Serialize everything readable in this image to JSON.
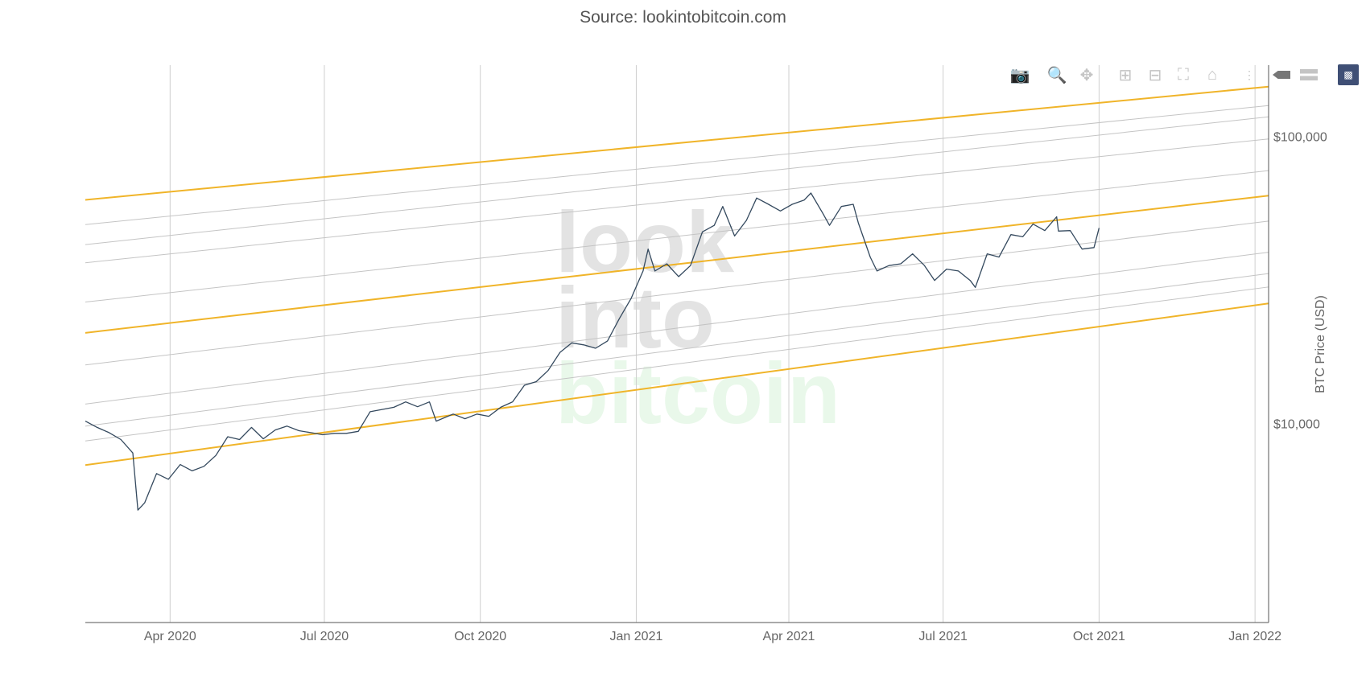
{
  "header": {
    "source": "Source: lookintobitcoin.com"
  },
  "watermark": {
    "line1": "look",
    "line2": "into",
    "line3": "bitcoin"
  },
  "toolbar": {
    "icons": [
      "camera-icon",
      "zoom-icon",
      "pan-icon",
      "zoom-in-icon",
      "zoom-out-icon",
      "autoscale-icon",
      "reset-axes-icon",
      "spike-lines-icon",
      "hover-closest-icon",
      "hover-compare-icon",
      "plotly-logo-icon"
    ]
  },
  "colors": {
    "price": "#34495e",
    "band_orange": "#f0b429",
    "band_gray": "#c4c4c4",
    "grid": "#cfcfcf",
    "logo": "#3f4f75"
  },
  "chart_data": {
    "type": "line",
    "title": "Source: lookintobitcoin.com",
    "xlabel": "",
    "ylabel": "BTC Price (USD)",
    "yscale": "log",
    "xlim": [
      "2020-02-11",
      "2022-01-09"
    ],
    "ylim": [
      2030,
      177000
    ],
    "x_ticks": [
      {
        "date": "2020-04-01",
        "label": "Apr 2020"
      },
      {
        "date": "2020-07-01",
        "label": "Jul 2020"
      },
      {
        "date": "2020-10-01",
        "label": "Oct 2020"
      },
      {
        "date": "2021-01-01",
        "label": "Jan 2021"
      },
      {
        "date": "2021-04-01",
        "label": "Apr 2021"
      },
      {
        "date": "2021-07-01",
        "label": "Jul 2021"
      },
      {
        "date": "2021-10-01",
        "label": "Oct 2021"
      },
      {
        "date": "2022-01-01",
        "label": "Jan 2022"
      }
    ],
    "y_ticks": [
      {
        "value": 10000,
        "label": "$10,000"
      },
      {
        "value": 100000,
        "label": "$100,000"
      }
    ],
    "grid": "x-only",
    "bands": [
      {
        "name": "orange-top",
        "color": "orange",
        "start": 60100,
        "end": 149000
      },
      {
        "name": "gray-1",
        "color": "gray",
        "start": 49300,
        "end": 128000
      },
      {
        "name": "gray-2",
        "color": "gray",
        "start": 42000,
        "end": 117000
      },
      {
        "name": "gray-3",
        "color": "gray",
        "start": 36300,
        "end": 98000
      },
      {
        "name": "gray-4",
        "color": "gray",
        "start": 26500,
        "end": 76000
      },
      {
        "name": "orange-mid",
        "color": "orange",
        "start": 20700,
        "end": 62200
      },
      {
        "name": "gray-5",
        "color": "gray",
        "start": 16000,
        "end": 50700
      },
      {
        "name": "gray-6",
        "color": "gray",
        "start": 11700,
        "end": 39500
      },
      {
        "name": "gray-7",
        "color": "gray",
        "start": 9800,
        "end": 33300
      },
      {
        "name": "gray-8",
        "color": "gray",
        "start": 8700,
        "end": 29900
      },
      {
        "name": "orange-bottom",
        "color": "orange",
        "start": 7170,
        "end": 26200
      }
    ],
    "series": [
      {
        "name": "BTC Price",
        "points": [
          [
            "2020-02-11",
            10200
          ],
          [
            "2020-02-18",
            9700
          ],
          [
            "2020-02-25",
            9300
          ],
          [
            "2020-03-03",
            8800
          ],
          [
            "2020-03-10",
            7900
          ],
          [
            "2020-03-13",
            5000
          ],
          [
            "2020-03-17",
            5300
          ],
          [
            "2020-03-24",
            6700
          ],
          [
            "2020-03-31",
            6400
          ],
          [
            "2020-04-07",
            7200
          ],
          [
            "2020-04-14",
            6850
          ],
          [
            "2020-04-21",
            7100
          ],
          [
            "2020-04-28",
            7750
          ],
          [
            "2020-05-05",
            9000
          ],
          [
            "2020-05-12",
            8800
          ],
          [
            "2020-05-19",
            9700
          ],
          [
            "2020-05-26",
            8850
          ],
          [
            "2020-06-02",
            9500
          ],
          [
            "2020-06-09",
            9800
          ],
          [
            "2020-06-16",
            9450
          ],
          [
            "2020-06-23",
            9300
          ],
          [
            "2020-06-30",
            9150
          ],
          [
            "2020-07-07",
            9250
          ],
          [
            "2020-07-14",
            9250
          ],
          [
            "2020-07-21",
            9400
          ],
          [
            "2020-07-28",
            11000
          ],
          [
            "2020-08-04",
            11200
          ],
          [
            "2020-08-11",
            11400
          ],
          [
            "2020-08-18",
            11900
          ],
          [
            "2020-08-25",
            11450
          ],
          [
            "2020-09-01",
            11900
          ],
          [
            "2020-09-05",
            10200
          ],
          [
            "2020-09-15",
            10800
          ],
          [
            "2020-09-22",
            10400
          ],
          [
            "2020-09-29",
            10800
          ],
          [
            "2020-10-06",
            10600
          ],
          [
            "2020-10-13",
            11400
          ],
          [
            "2020-10-20",
            11900
          ],
          [
            "2020-10-27",
            13600
          ],
          [
            "2020-11-03",
            14000
          ],
          [
            "2020-11-10",
            15300
          ],
          [
            "2020-11-17",
            17700
          ],
          [
            "2020-11-24",
            19100
          ],
          [
            "2020-12-01",
            18800
          ],
          [
            "2020-12-08",
            18300
          ],
          [
            "2020-12-15",
            19400
          ],
          [
            "2020-12-22",
            23200
          ],
          [
            "2020-12-29",
            27300
          ],
          [
            "2021-01-05",
            34000
          ],
          [
            "2021-01-08",
            40500
          ],
          [
            "2021-01-12",
            34000
          ],
          [
            "2021-01-19",
            36000
          ],
          [
            "2021-01-26",
            32500
          ],
          [
            "2021-02-02",
            35500
          ],
          [
            "2021-02-09",
            46500
          ],
          [
            "2021-02-16",
            49000
          ],
          [
            "2021-02-21",
            57000
          ],
          [
            "2021-02-28",
            45000
          ],
          [
            "2021-03-07",
            51000
          ],
          [
            "2021-03-13",
            61000
          ],
          [
            "2021-03-20",
            58000
          ],
          [
            "2021-03-27",
            55000
          ],
          [
            "2021-04-03",
            58000
          ],
          [
            "2021-04-10",
            60000
          ],
          [
            "2021-04-14",
            63500
          ],
          [
            "2021-04-21",
            54000
          ],
          [
            "2021-04-25",
            49000
          ],
          [
            "2021-05-02",
            57000
          ],
          [
            "2021-05-09",
            58000
          ],
          [
            "2021-05-12",
            50000
          ],
          [
            "2021-05-19",
            38000
          ],
          [
            "2021-05-23",
            34000
          ],
          [
            "2021-05-30",
            35500
          ],
          [
            "2021-06-06",
            36000
          ],
          [
            "2021-06-13",
            39000
          ],
          [
            "2021-06-20",
            35500
          ],
          [
            "2021-06-26",
            31500
          ],
          [
            "2021-07-03",
            34500
          ],
          [
            "2021-07-10",
            34000
          ],
          [
            "2021-07-17",
            31500
          ],
          [
            "2021-07-20",
            29800
          ],
          [
            "2021-07-27",
            39000
          ],
          [
            "2021-08-03",
            38000
          ],
          [
            "2021-08-10",
            45500
          ],
          [
            "2021-08-17",
            44700
          ],
          [
            "2021-08-23",
            49500
          ],
          [
            "2021-08-30",
            47000
          ],
          [
            "2021-09-06",
            52500
          ],
          [
            "2021-09-07",
            46800
          ],
          [
            "2021-09-14",
            47000
          ],
          [
            "2021-09-21",
            40500
          ],
          [
            "2021-09-28",
            41000
          ],
          [
            "2021-10-01",
            48000
          ]
        ]
      }
    ]
  }
}
